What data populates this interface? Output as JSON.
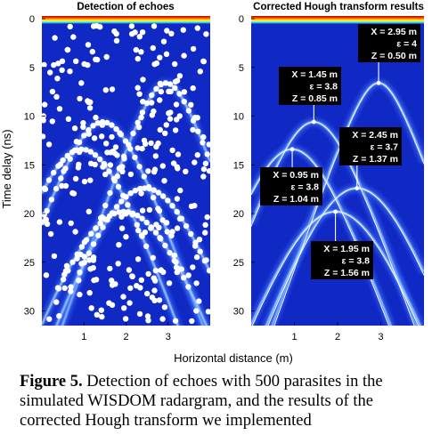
{
  "figure": {
    "caption_label": "Figure 5.",
    "caption_text": " Detection of echoes with 500 parasites in the simulated WISDOM radargram, and the results of the corrected Hough transform we implemented",
    "shared_ylabel": "Time delay (ns)",
    "shared_xlabel": "Horizontal distance (m)"
  },
  "chart_data": [
    {
      "type": "heatmap",
      "title": "Detection of echoes",
      "xlim": [
        0.0,
        4.0
      ],
      "ylim": [
        31.5,
        0
      ],
      "xticks": [
        1,
        2,
        3
      ],
      "yticks": [
        0,
        5,
        10,
        15,
        20,
        25,
        30
      ],
      "colors": {
        "background": "#1028c4",
        "echo": "#9ec6ff",
        "marker": "#ffffff"
      },
      "hyperbola_apexes": [
        {
          "x": 2.95,
          "z": 6.6
        },
        {
          "x": 1.45,
          "z": 10.6
        },
        {
          "x": 0.95,
          "z": 13.4
        },
        {
          "x": 2.45,
          "z": 17.4
        },
        {
          "x": 1.95,
          "z": 19.8
        }
      ],
      "parasite_count": 500
    },
    {
      "type": "heatmap",
      "title": "Corrected Hough transform results",
      "xlim": [
        0.0,
        4.0
      ],
      "ylim": [
        31.5,
        0
      ],
      "xticks": [
        1,
        2,
        3
      ],
      "yticks": [
        0,
        5,
        10,
        15,
        20,
        25,
        30
      ],
      "colors": {
        "background": "#1028c4",
        "echo": "#9ec6ff",
        "fit": "#ffffff",
        "box": "#000000"
      },
      "results": [
        {
          "x_text": "X = 2.95 m",
          "eps_text": "ε = 4",
          "z_text": "Z = 0.50 m",
          "x": 2.95,
          "eps": 4.0,
          "z": 0.5,
          "apex_t": 6.6
        },
        {
          "x_text": "X = 1.45 m",
          "eps_text": "ε = 3.8",
          "z_text": "Z = 0.85 m",
          "x": 1.45,
          "eps": 3.8,
          "z": 0.85,
          "apex_t": 10.6
        },
        {
          "x_text": "X = 2.45 m",
          "eps_text": "ε = 3.7",
          "z_text": "Z = 1.37 m",
          "x": 2.45,
          "eps": 3.7,
          "z": 1.37,
          "apex_t": 17.4
        },
        {
          "x_text": "X = 0.95 m",
          "eps_text": "ε = 3.8",
          "z_text": "Z = 1.04 m",
          "x": 0.95,
          "eps": 3.8,
          "z": 1.04,
          "apex_t": 13.4
        },
        {
          "x_text": "X = 1.95 m",
          "eps_text": "ε = 3.8",
          "z_text": "Z = 1.56 m",
          "x": 1.95,
          "eps": 3.8,
          "z": 1.56,
          "apex_t": 19.8
        }
      ]
    }
  ]
}
